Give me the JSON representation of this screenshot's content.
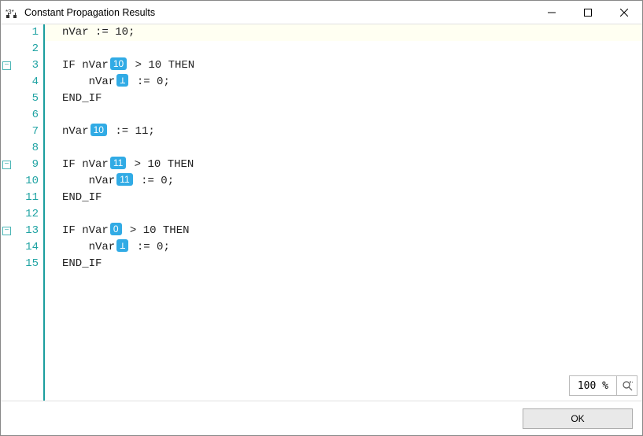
{
  "window": {
    "title": "Constant Propagation Results",
    "controls": {
      "min": "–",
      "max": "☐",
      "close": "✕"
    }
  },
  "editor": {
    "line_height": 21,
    "line_number_color": "#1fa3a3",
    "separator_color": "#1c9e9e",
    "highlight_bg": "#fffff2",
    "badge_bg": "#31abe5",
    "badge_fg": "#ffffff",
    "fold_color": "#4ab5b5",
    "fold_lines": [
      3,
      9,
      13
    ],
    "first_line_highlighted": true,
    "lines": [
      {
        "n": 1,
        "tokens": [
          {
            "t": "nVar := 10;"
          }
        ]
      },
      {
        "n": 2,
        "tokens": []
      },
      {
        "n": 3,
        "tokens": [
          {
            "t": "IF nVar"
          },
          {
            "badge": "10"
          },
          {
            "t": " > 10 THEN"
          }
        ]
      },
      {
        "n": 4,
        "tokens": [
          {
            "t": "    nVar"
          },
          {
            "badge": "⊥",
            "bot": true
          },
          {
            "t": " := 0;"
          }
        ]
      },
      {
        "n": 5,
        "tokens": [
          {
            "t": "END_IF"
          }
        ]
      },
      {
        "n": 6,
        "tokens": []
      },
      {
        "n": 7,
        "tokens": [
          {
            "t": "nVar"
          },
          {
            "badge": "10"
          },
          {
            "t": " := 11;"
          }
        ]
      },
      {
        "n": 8,
        "tokens": []
      },
      {
        "n": 9,
        "tokens": [
          {
            "t": "IF nVar"
          },
          {
            "badge": "11"
          },
          {
            "t": " > 10 THEN"
          }
        ]
      },
      {
        "n": 10,
        "tokens": [
          {
            "t": "    nVar"
          },
          {
            "badge": "11"
          },
          {
            "t": " := 0;"
          }
        ]
      },
      {
        "n": 11,
        "tokens": [
          {
            "t": "END_IF"
          }
        ]
      },
      {
        "n": 12,
        "tokens": []
      },
      {
        "n": 13,
        "tokens": [
          {
            "t": "IF nVar"
          },
          {
            "badge": "0"
          },
          {
            "t": " > 10 THEN"
          }
        ]
      },
      {
        "n": 14,
        "tokens": [
          {
            "t": "    nVar"
          },
          {
            "badge": "⊥",
            "bot": true
          },
          {
            "t": " := 0;"
          }
        ]
      },
      {
        "n": 15,
        "tokens": [
          {
            "t": "END_IF"
          }
        ]
      }
    ]
  },
  "zoom": {
    "text": "100 %"
  },
  "buttons": {
    "ok": "OK"
  }
}
